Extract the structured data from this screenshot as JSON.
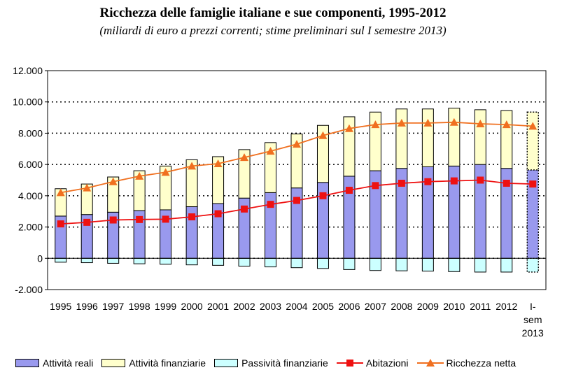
{
  "colors": {
    "real_assets": "#9999ee",
    "financial_assets": "#ffffcc",
    "liabilities": "#ccffff",
    "housing": "#ee1111",
    "net_wealth": "#f07020",
    "grid": "#000000"
  },
  "chart_data": {
    "type": "bar",
    "title": "Ricchezza delle famiglie italiane e sue componenti, 1995-2012",
    "subtitle": "(miliardi di euro a prezzi correnti; stime preliminari sul I semestre 2013)",
    "categories": [
      "1995",
      "1996",
      "1997",
      "1998",
      "1999",
      "2000",
      "2001",
      "2002",
      "2003",
      "2004",
      "2005",
      "2006",
      "2007",
      "2008",
      "2009",
      "2010",
      "2011",
      "2012",
      "I-sem 2013"
    ],
    "category_label_lines": [
      [
        "1995"
      ],
      [
        "1996"
      ],
      [
        "1997"
      ],
      [
        "1998"
      ],
      [
        "1999"
      ],
      [
        "2000"
      ],
      [
        "2001"
      ],
      [
        "2002"
      ],
      [
        "2003"
      ],
      [
        "2004"
      ],
      [
        "2005"
      ],
      [
        "2006"
      ],
      [
        "2007"
      ],
      [
        "2008"
      ],
      [
        "2009"
      ],
      [
        "2010"
      ],
      [
        "2011"
      ],
      [
        "2012"
      ],
      [
        "I-",
        "sem",
        "2013"
      ]
    ],
    "ylim": [
      -2000,
      12000
    ],
    "yticks": [
      -2000,
      0,
      2000,
      4000,
      6000,
      8000,
      10000,
      12000
    ],
    "ytick_labels": [
      "-2.000",
      "0",
      "2.000",
      "4.000",
      "6.000",
      "8.000",
      "10.000",
      "12.000"
    ],
    "grid": "horizontal dotted",
    "legend_position": "bottom",
    "series": [
      {
        "name": "Attività reali",
        "kind": "bar",
        "values": [
          2700,
          2800,
          2950,
          3050,
          3100,
          3300,
          3500,
          3850,
          4200,
          4500,
          4850,
          5250,
          5600,
          5750,
          5850,
          5900,
          6000,
          5750,
          5650
        ]
      },
      {
        "name": "Attività finanziarie",
        "kind": "bar",
        "values": [
          1750,
          1950,
          2250,
          2550,
          2800,
          3000,
          3000,
          3100,
          3200,
          3450,
          3650,
          3800,
          3750,
          3800,
          3700,
          3700,
          3500,
          3700,
          3700
        ]
      },
      {
        "name": "Passività finanziarie",
        "kind": "bar",
        "values": [
          -250,
          -280,
          -320,
          -350,
          -380,
          -420,
          -450,
          -500,
          -550,
          -600,
          -650,
          -720,
          -780,
          -800,
          -820,
          -850,
          -880,
          -880,
          -880
        ]
      },
      {
        "name": "Abitazioni",
        "kind": "line",
        "values": [
          2200,
          2300,
          2450,
          2480,
          2500,
          2650,
          2850,
          3150,
          3450,
          3700,
          4000,
          4350,
          4650,
          4800,
          4900,
          4950,
          5000,
          4800,
          4750
        ]
      },
      {
        "name": "Ricchezza netta",
        "kind": "line",
        "values": [
          4200,
          4500,
          4900,
          5250,
          5500,
          5900,
          6050,
          6450,
          6850,
          7300,
          7850,
          8300,
          8550,
          8650,
          8650,
          8700,
          8600,
          8550,
          8450
        ]
      }
    ]
  }
}
